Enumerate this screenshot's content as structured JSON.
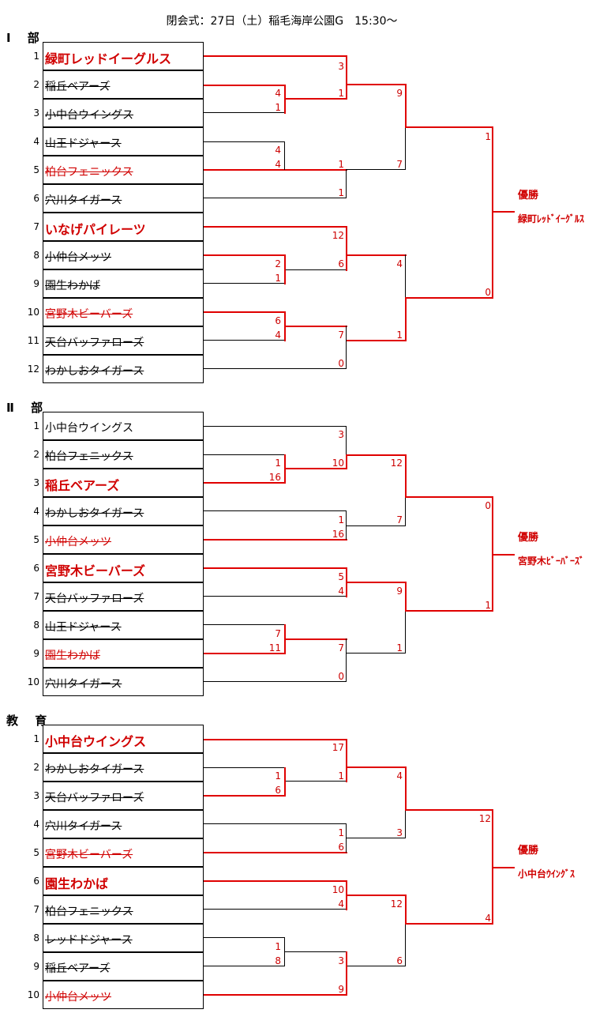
{
  "title": "閉会式：27日（土）稲毛海岸公園G　15:30～",
  "colors": {
    "winner": "#e00000",
    "loser": "#000000"
  },
  "champion_label": "優勝",
  "sections": [
    {
      "label": "Ⅰ 部",
      "champion": "緑町ﾚｯﾄﾞｲｰｸﾞﾙｽ",
      "teams": [
        {
          "seed": "1",
          "name": "緑町レッドイーグルス",
          "state": "win"
        },
        {
          "seed": "2",
          "name": "稲丘ベアーズ",
          "state": "lost"
        },
        {
          "seed": "3",
          "name": "小中台ウイングス",
          "state": "lost"
        },
        {
          "seed": "4",
          "name": "山王ドジャース",
          "state": "lost"
        },
        {
          "seed": "5",
          "name": "柏台フェニックス",
          "state": "redlost"
        },
        {
          "seed": "6",
          "name": "穴川タイガース",
          "state": "lost"
        },
        {
          "seed": "7",
          "name": "いなげパイレーツ",
          "state": "win"
        },
        {
          "seed": "8",
          "name": "小仲台メッツ",
          "state": "lost"
        },
        {
          "seed": "9",
          "name": "園生わかば",
          "state": "lost"
        },
        {
          "seed": "10",
          "name": "宮野木ビーバーズ",
          "state": "redlost"
        },
        {
          "seed": "11",
          "name": "天台バッファローズ",
          "state": "lost"
        },
        {
          "seed": "12",
          "name": "わかしおタイガース",
          "state": "lost"
        }
      ],
      "scores": [
        "3",
        "4",
        "1",
        "1",
        "9",
        "1",
        "4",
        "4",
        "7",
        "1",
        "1",
        "12",
        "4",
        "2",
        "6",
        "1",
        "6",
        "0",
        "4",
        "7",
        "1",
        "0"
      ]
    },
    {
      "label": "Ⅱ 部",
      "champion": "宮野木ﾋﾞｰﾊﾞｰｽﾞ",
      "teams": [
        {
          "seed": "1",
          "name": "小中台ウイングス",
          "state": "plain"
        },
        {
          "seed": "2",
          "name": "柏台フェニックス",
          "state": "lost"
        },
        {
          "seed": "3",
          "name": "稲丘ベアーズ",
          "state": "win"
        },
        {
          "seed": "4",
          "name": "わかしおタイガース",
          "state": "lost"
        },
        {
          "seed": "5",
          "name": "小仲台メッツ",
          "state": "redlost"
        },
        {
          "seed": "6",
          "name": "宮野木ビーバーズ",
          "state": "win"
        },
        {
          "seed": "7",
          "name": "天台バッファローズ",
          "state": "lost"
        },
        {
          "seed": "8",
          "name": "山王ドジャース",
          "state": "lost"
        },
        {
          "seed": "9",
          "name": "園生わかば",
          "state": "redlost"
        },
        {
          "seed": "10",
          "name": "穴川タイガース",
          "state": "lost"
        }
      ],
      "scores": [
        "3",
        "1",
        "10",
        "16",
        "12",
        "0",
        "1",
        "16",
        "7",
        "5",
        "4",
        "9",
        "1",
        "7",
        "11",
        "7",
        "1",
        "0"
      ]
    },
    {
      "label": "教 育",
      "champion": "小中台ｳｲﾝｸﾞｽ",
      "teams": [
        {
          "seed": "1",
          "name": "小中台ウイングス",
          "state": "win"
        },
        {
          "seed": "2",
          "name": "わかしおタイガース",
          "state": "lost"
        },
        {
          "seed": "3",
          "name": "天台バッファローズ",
          "state": "lost"
        },
        {
          "seed": "4",
          "name": "穴川タイガース",
          "state": "lost"
        },
        {
          "seed": "5",
          "name": "宮野木ビーバーズ",
          "state": "redlost"
        },
        {
          "seed": "6",
          "name": "園生わかば",
          "state": "win"
        },
        {
          "seed": "7",
          "name": "柏台フェニックス",
          "state": "lost"
        },
        {
          "seed": "8",
          "name": "レッドドジャース",
          "state": "lost"
        },
        {
          "seed": "9",
          "name": "稲丘ベアーズ",
          "state": "lost"
        },
        {
          "seed": "10",
          "name": "小仲台メッツ",
          "state": "redlost"
        }
      ],
      "scores": [
        "17",
        "1",
        "1",
        "6",
        "4",
        "12",
        "1",
        "3",
        "6",
        "10",
        "4",
        "12",
        "4",
        "1",
        "8",
        "3",
        "6",
        "9"
      ]
    }
  ]
}
